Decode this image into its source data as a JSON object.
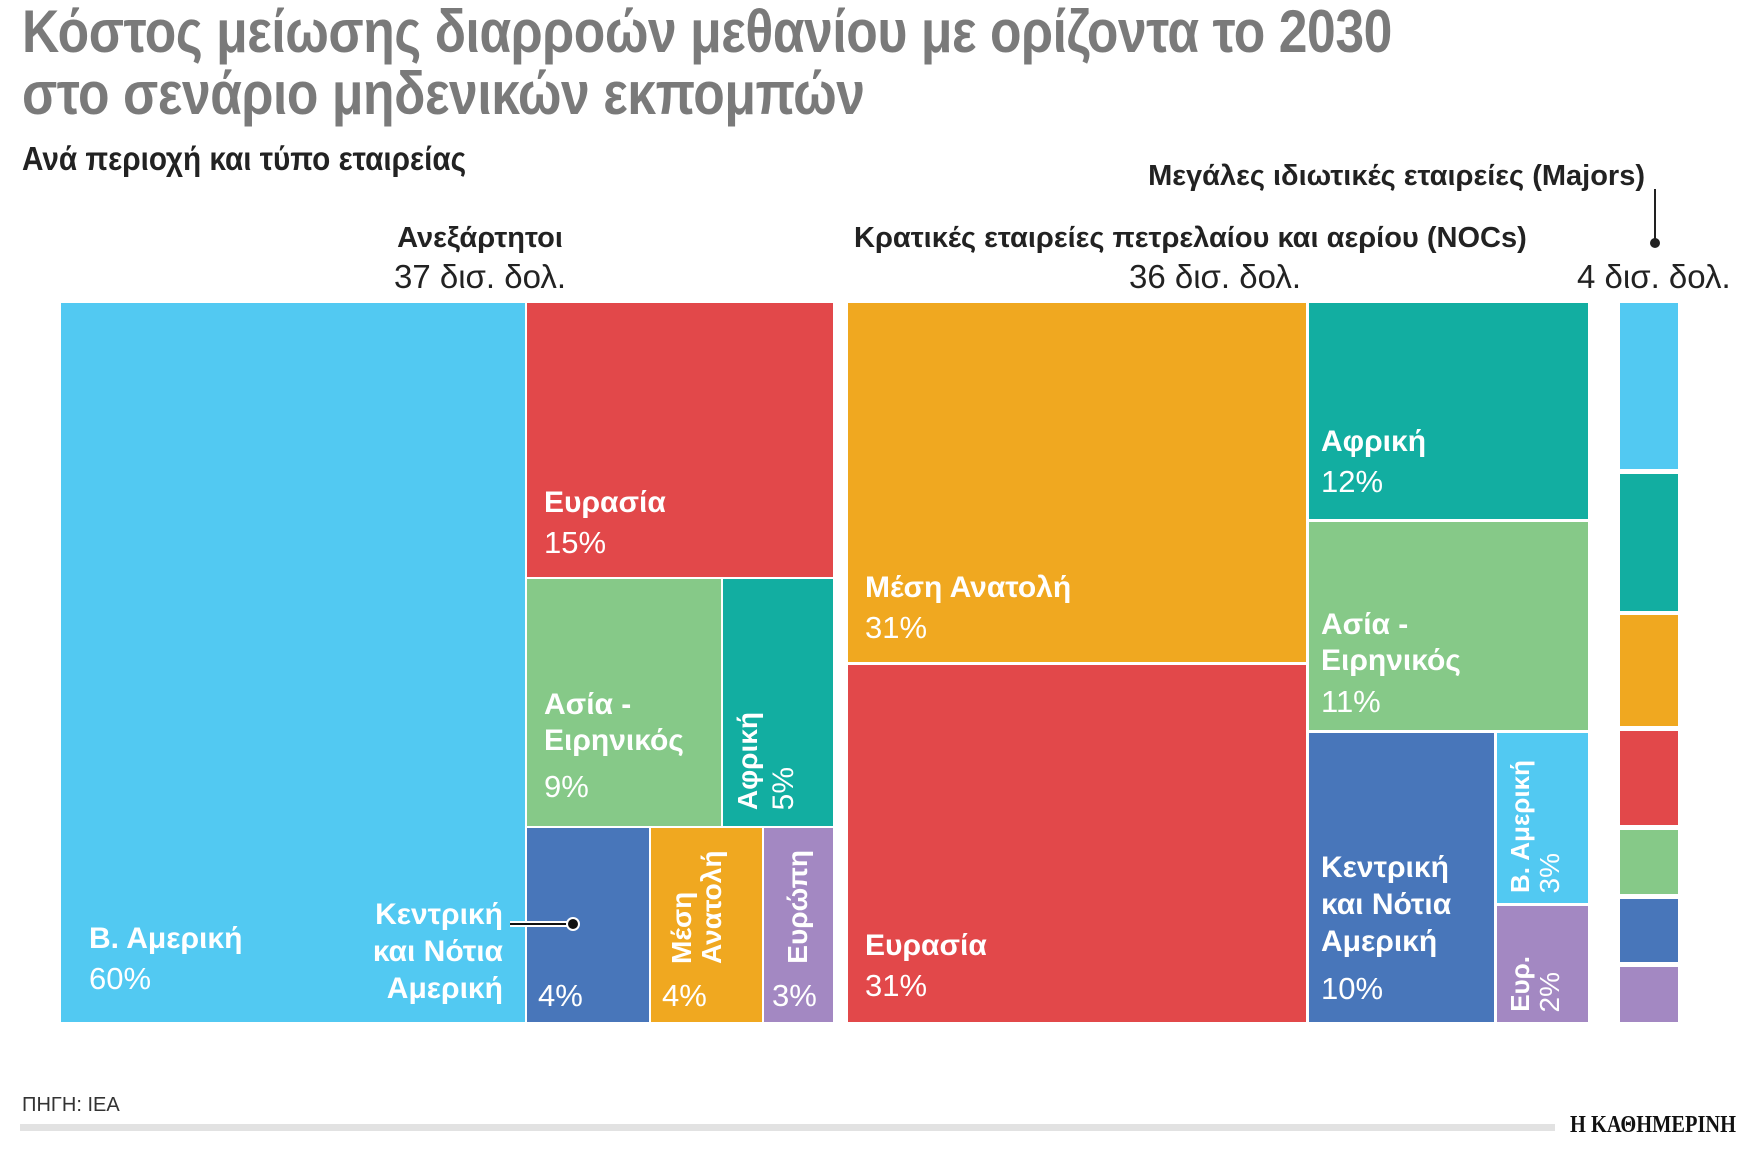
{
  "title_line1": "Κόστος μείωσης διαρροών μεθανίου με ορίζοντα το 2030",
  "title_line2": "στο σενάριο μηδενικών εκπομπών",
  "subtitle": "Ανά περιοχή και τύπο εταιρείας",
  "source": "ΠΗΓΗ: IEA",
  "publisher_logo": "Η ΚΑΘΗΜΕΡΙΝΗ",
  "colors": {
    "north_america": "#52C9F2",
    "eurasia": "#E2484A",
    "asia_pacific": "#86C988",
    "africa": "#12AEA1",
    "central_south_america": "#4876BA",
    "middle_east": "#F0A820",
    "europe": "#A388C2"
  },
  "chart_data": {
    "type": "treemap",
    "title": "Κόστος μείωσης διαρροών μεθανίου με ορίζοντα το 2030 στο σενάριο μηδενικών εκπομπών",
    "subtitle": "Ανά περιοχή και τύπο εταιρείας",
    "groups": [
      {
        "name": "Ανεξάρτητοι",
        "total": "37 δισ. δολ.",
        "items": [
          {
            "region": "Β. Αμερική",
            "share": "60%",
            "value": 60
          },
          {
            "region": "Ευρασία",
            "share": "15%",
            "value": 15
          },
          {
            "region": "Ασία - Ειρηνικός",
            "share": "9%",
            "value": 9
          },
          {
            "region": "Αφρική",
            "share": "5%",
            "value": 5
          },
          {
            "region": "Κεντρική και Νότια Αμερική",
            "share": "4%",
            "value": 4
          },
          {
            "region": "Μέση Ανατολή",
            "share": "4%",
            "value": 4
          },
          {
            "region": "Ευρώπη",
            "share": "3%",
            "value": 3
          }
        ]
      },
      {
        "name": "Κρατικές εταιρείες πετρελαίου και αερίου (NOCs)",
        "total": "36 δισ. δολ.",
        "items": [
          {
            "region": "Μέση Ανατολή",
            "share": "31%",
            "value": 31
          },
          {
            "region": "Ευρασία",
            "share": "31%",
            "value": 31
          },
          {
            "region": "Αφρική",
            "share": "12%",
            "value": 12
          },
          {
            "region": "Ασία - Ειρηνικός",
            "share": "11%",
            "value": 11
          },
          {
            "region": "Κεντρική και Νότια Αμερική",
            "share": "10%",
            "value": 10
          },
          {
            "region": "Β. Αμερική",
            "share": "3%",
            "value": 3
          },
          {
            "region": "Ευρ.",
            "share": "2%",
            "value": 2
          }
        ]
      },
      {
        "name": "Μεγάλες ιδιωτικές εταιρείες (Majors)",
        "total": "4 δισ. δολ.",
        "segment_colors": [
          "#52C9F2",
          "#12AEA1",
          "#F0A820",
          "#E2484A",
          "#86C988",
          "#4876BA",
          "#A388C2"
        ]
      }
    ]
  }
}
